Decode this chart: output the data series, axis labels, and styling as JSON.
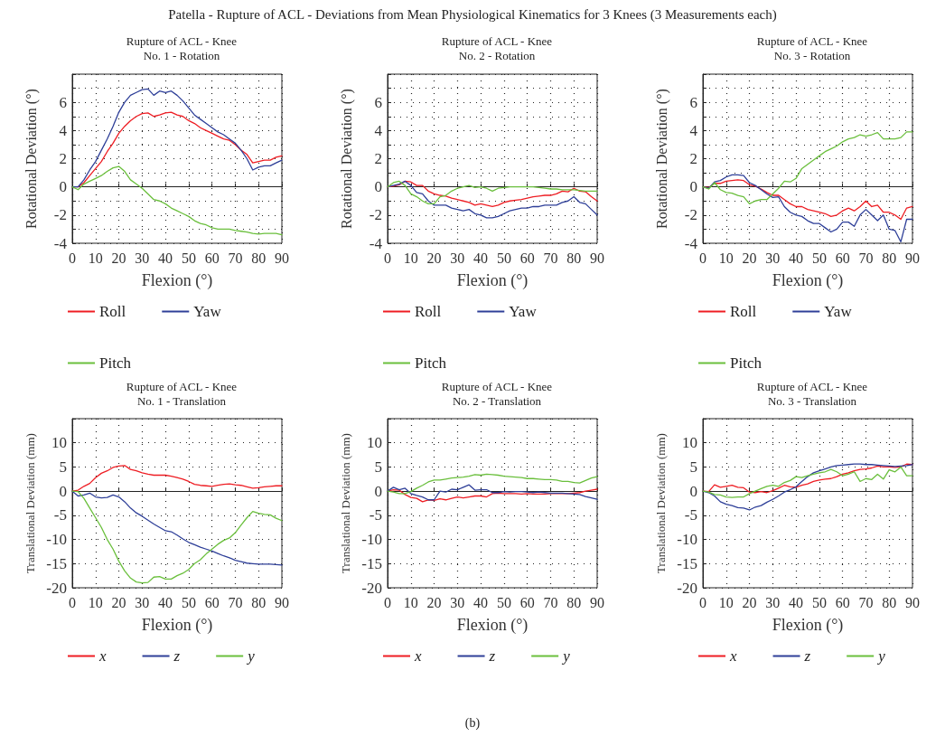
{
  "chart_data": [
    {
      "type": "line",
      "title": "Rupture of ACL - Knee\nNo. 1 - Rotation",
      "xlabel": "Flexion (°)",
      "ylabel": "Rotational Deviation (°)",
      "annotations": [
        "Patella - Rupture of ACL - Deviations from Mean Physiological Kinematics for 3 Knees (3 Measurements each)"
      ],
      "xlim": [
        0,
        90
      ],
      "xticks": [
        0,
        10,
        20,
        30,
        40,
        50,
        60,
        70,
        80,
        90
      ],
      "ylim": [
        -4,
        8
      ],
      "yticks": [
        -4,
        {
          "value": -3,
          "label": null
        },
        -2,
        {
          "value": -1,
          "label": null
        },
        0,
        {
          "value": 1,
          "label": null
        },
        2,
        {
          "value": 3,
          "label": null
        },
        4,
        {
          "value": 5,
          "label": null
        },
        6,
        {
          "value": 7,
          "label": null
        }
      ],
      "grid": true,
      "legend": "bottom",
      "x": [
        0,
        2.5,
        5,
        7.5,
        10,
        12.5,
        15,
        17.5,
        20,
        22.5,
        25,
        27.5,
        30,
        32.5,
        35,
        37.5,
        40,
        42.5,
        45,
        47.5,
        50,
        52.5,
        55,
        57.5,
        60,
        62.5,
        65,
        67.5,
        70,
        72.5,
        75,
        77.5,
        80,
        82.5,
        85,
        87.5,
        90
      ],
      "series": [
        {
          "name": "Roll",
          "color": "#ee1d23",
          "values": [
            0,
            0,
            0.3,
            0.8,
            1.3,
            1.8,
            2.5,
            3.1,
            3.8,
            4.3,
            4.7,
            5.0,
            5.2,
            5.25,
            5.0,
            5.1,
            5.25,
            5.3,
            5.1,
            5.0,
            4.7,
            4.5,
            4.2,
            4.0,
            3.8,
            3.6,
            3.4,
            3.3,
            3.0,
            2.6,
            2.3,
            1.7,
            1.8,
            1.9,
            1.9,
            2.1,
            2.2
          ]
        },
        {
          "name": "Yaw",
          "color": "#2e3f98",
          "values": [
            0,
            0,
            0.5,
            1.2,
            1.8,
            2.6,
            3.4,
            4.3,
            5.3,
            6.0,
            6.5,
            6.7,
            6.9,
            6.95,
            6.5,
            6.8,
            6.7,
            6.8,
            6.5,
            6.1,
            5.6,
            5.1,
            4.8,
            4.5,
            4.2,
            3.9,
            3.7,
            3.4,
            3.1,
            2.6,
            2.0,
            1.2,
            1.4,
            1.5,
            1.5,
            1.7,
            1.9
          ]
        },
        {
          "name": "Pitch",
          "color": "#6abf3c",
          "values": [
            0,
            -0.2,
            0.2,
            0.4,
            0.6,
            0.8,
            1.1,
            1.35,
            1.45,
            1.1,
            0.5,
            0.2,
            -0.1,
            -0.5,
            -0.9,
            -1.0,
            -1.2,
            -1.5,
            -1.7,
            -1.9,
            -2.1,
            -2.4,
            -2.6,
            -2.7,
            -2.9,
            -3.0,
            -3.0,
            -3.0,
            -3.1,
            -3.15,
            -3.2,
            -3.3,
            -3.35,
            -3.3,
            -3.3,
            -3.3,
            -3.4
          ]
        }
      ]
    },
    {
      "type": "line",
      "title": "Rupture of ACL - Knee\nNo. 2 - Rotation",
      "xlabel": "Flexion (°)",
      "ylabel": "Rotational Deviation (°)",
      "xlim": [
        0,
        90
      ],
      "xticks": [
        0,
        10,
        20,
        30,
        40,
        50,
        60,
        70,
        80,
        90
      ],
      "ylim": [
        -4,
        8
      ],
      "yticks": [
        -4,
        {
          "value": -3,
          "label": null
        },
        -2,
        {
          "value": -1,
          "label": null
        },
        0,
        {
          "value": 1,
          "label": null
        },
        2,
        {
          "value": 3,
          "label": null
        },
        4,
        {
          "value": 5,
          "label": null
        },
        6,
        {
          "value": 7,
          "label": null
        }
      ],
      "grid": true,
      "legend": "bottom",
      "x": [
        0,
        2.5,
        5,
        7.5,
        10,
        12.5,
        15,
        17.5,
        20,
        22.5,
        25,
        27.5,
        30,
        32.5,
        35,
        37.5,
        40,
        42.5,
        45,
        47.5,
        50,
        52.5,
        55,
        57.5,
        60,
        62.5,
        65,
        67.5,
        70,
        72.5,
        75,
        77.5,
        80,
        82.5,
        85,
        87.5,
        90
      ],
      "series": [
        {
          "name": "Roll",
          "color": "#ee1d23",
          "values": [
            0,
            0.05,
            0.15,
            0.4,
            0.35,
            0.1,
            0.1,
            -0.3,
            -0.5,
            -0.6,
            -0.65,
            -0.8,
            -0.9,
            -1.0,
            -1.1,
            -1.3,
            -1.2,
            -1.3,
            -1.4,
            -1.3,
            -1.1,
            -1.0,
            -0.95,
            -0.9,
            -0.8,
            -0.7,
            -0.65,
            -0.6,
            -0.6,
            -0.5,
            -0.3,
            -0.35,
            -0.1,
            -0.3,
            -0.35,
            -0.7,
            -1.0
          ]
        },
        {
          "name": "Yaw",
          "color": "#2e3f98",
          "values": [
            0,
            0.1,
            0.2,
            0.4,
            0.1,
            -0.4,
            -0.5,
            -1.0,
            -1.3,
            -1.3,
            -1.3,
            -1.5,
            -1.6,
            -1.7,
            -1.6,
            -1.9,
            -2.0,
            -2.2,
            -2.2,
            -2.1,
            -1.9,
            -1.7,
            -1.6,
            -1.5,
            -1.5,
            -1.4,
            -1.4,
            -1.3,
            -1.3,
            -1.3,
            -1.1,
            -1.0,
            -0.7,
            -1.1,
            -1.2,
            -1.6,
            -2.0
          ]
        },
        {
          "name": "Pitch",
          "color": "#6abf3c",
          "values": [
            0,
            0.3,
            0.4,
            0.1,
            -0.5,
            -0.7,
            -1.0,
            -1.2,
            -1.2,
            -0.7,
            -0.6,
            -0.3,
            -0.1,
            0.0,
            0.1,
            -0.05,
            0.0,
            -0.1,
            -0.3,
            -0.1,
            -0.05,
            0.0,
            0.0,
            0.0,
            0.0,
            0.0,
            -0.05,
            -0.1,
            -0.15,
            -0.15,
            -0.2,
            -0.2,
            -0.2,
            -0.25,
            -0.3,
            -0.3,
            -0.3
          ]
        }
      ]
    },
    {
      "type": "line",
      "title": "Rupture of ACL - Knee\nNo. 3 - Rotation",
      "xlabel": "Flexion (°)",
      "ylabel": "Rotational Deviation (°)",
      "xlim": [
        0,
        90
      ],
      "xticks": [
        0,
        10,
        20,
        30,
        40,
        50,
        60,
        70,
        80,
        90
      ],
      "ylim": [
        -4,
        8
      ],
      "yticks": [
        -4,
        {
          "value": -3,
          "label": null
        },
        -2,
        {
          "value": -1,
          "label": null
        },
        0,
        {
          "value": 1,
          "label": null
        },
        2,
        {
          "value": 3,
          "label": null
        },
        4,
        {
          "value": 5,
          "label": null
        },
        6,
        {
          "value": 7,
          "label": null
        }
      ],
      "grid": true,
      "legend": "bottom",
      "x": [
        0,
        2.5,
        5,
        7.5,
        10,
        12.5,
        15,
        17.5,
        20,
        22.5,
        25,
        27.5,
        30,
        32.5,
        35,
        37.5,
        40,
        42.5,
        45,
        47.5,
        50,
        52.5,
        55,
        57.5,
        60,
        62.5,
        65,
        67.5,
        70,
        72.5,
        75,
        77.5,
        80,
        82.5,
        85,
        87.5,
        90
      ],
      "series": [
        {
          "name": "Roll",
          "color": "#ee1d23",
          "values": [
            0,
            -0.05,
            0.25,
            0.25,
            0.4,
            0.45,
            0.5,
            0.45,
            0.15,
            0.05,
            -0.15,
            -0.4,
            -0.6,
            -0.6,
            -0.9,
            -1.2,
            -1.4,
            -1.4,
            -1.6,
            -1.7,
            -1.8,
            -1.9,
            -2.1,
            -2.0,
            -1.7,
            -1.5,
            -1.7,
            -1.4,
            -1.0,
            -1.4,
            -1.3,
            -1.8,
            -1.8,
            -2.0,
            -2.3,
            -1.5,
            -1.4
          ]
        },
        {
          "name": "Yaw",
          "color": "#2e3f98",
          "values": [
            0,
            -0.1,
            0.35,
            0.45,
            0.7,
            0.85,
            0.85,
            0.8,
            0.3,
            0.1,
            -0.2,
            -0.5,
            -0.75,
            -0.7,
            -1.4,
            -1.8,
            -2.0,
            -2.1,
            -2.4,
            -2.6,
            -2.6,
            -2.9,
            -3.2,
            -3.0,
            -2.5,
            -2.5,
            -2.8,
            -2.0,
            -1.6,
            -2.0,
            -2.4,
            -2.0,
            -3.0,
            -3.1,
            -3.9,
            -2.3,
            -2.3
          ]
        },
        {
          "name": "Pitch",
          "color": "#6abf3c",
          "values": [
            0,
            -0.15,
            0.3,
            -0.2,
            -0.4,
            -0.45,
            -0.6,
            -0.7,
            -1.2,
            -1.0,
            -0.9,
            -0.9,
            -0.5,
            -0.1,
            0.4,
            0.35,
            0.6,
            1.3,
            1.6,
            1.9,
            2.2,
            2.5,
            2.7,
            2.9,
            3.2,
            3.4,
            3.5,
            3.7,
            3.6,
            3.7,
            3.85,
            3.4,
            3.4,
            3.4,
            3.5,
            3.9,
            3.9
          ]
        }
      ]
    },
    {
      "type": "line",
      "title": "Rupture of ACL - Knee\nNo. 1 - Translation",
      "xlabel": "Flexion (°)",
      "ylabel": "Translational Deviation (mm)",
      "xlim": [
        0,
        90
      ],
      "xticks": [
        0,
        10,
        20,
        30,
        40,
        50,
        60,
        70,
        80,
        90
      ],
      "ylim": [
        -20,
        15
      ],
      "yticks": [
        -20,
        -15,
        -10,
        -5,
        0,
        5,
        10
      ],
      "grid": true,
      "legend": "bottom",
      "x": [
        0,
        2.5,
        5,
        7.5,
        10,
        12.5,
        15,
        17.5,
        20,
        22.5,
        25,
        27.5,
        30,
        32.5,
        35,
        37.5,
        40,
        42.5,
        45,
        47.5,
        50,
        52.5,
        55,
        57.5,
        60,
        62.5,
        65,
        67.5,
        70,
        72.5,
        75,
        77.5,
        80,
        82.5,
        85,
        87.5,
        90
      ],
      "series": [
        {
          "name": "x",
          "color": "#ee1d23",
          "values": [
            0,
            0.2,
            1.0,
            1.6,
            2.8,
            3.7,
            4.2,
            4.9,
            5.2,
            5.3,
            4.5,
            4.2,
            3.8,
            3.5,
            3.3,
            3.3,
            3.3,
            3.1,
            2.8,
            2.5,
            2.0,
            1.4,
            1.2,
            1.1,
            1.0,
            1.2,
            1.4,
            1.5,
            1.3,
            1.2,
            0.9,
            0.6,
            0.7,
            0.9,
            1.0,
            1.1,
            1.1
          ]
        },
        {
          "name": "z",
          "color": "#2e3f98",
          "values": [
            0,
            -1.0,
            -0.8,
            -0.4,
            -1.2,
            -1.4,
            -1.3,
            -0.8,
            -1.2,
            -2.2,
            -3.5,
            -4.5,
            -5.2,
            -6.0,
            -6.8,
            -7.5,
            -8.2,
            -8.4,
            -9.1,
            -9.9,
            -10.6,
            -11.1,
            -11.6,
            -12.0,
            -12.4,
            -12.9,
            -13.4,
            -13.8,
            -14.3,
            -14.6,
            -14.9,
            -15.0,
            -15.1,
            -15.1,
            -15.1,
            -15.2,
            -15.3
          ]
        },
        {
          "name": "y",
          "color": "#6abf3c",
          "values": [
            0,
            -0.1,
            -1.5,
            -3.5,
            -5.5,
            -7.5,
            -10.0,
            -12.0,
            -14.5,
            -16.5,
            -18.0,
            -18.8,
            -19.0,
            -18.9,
            -17.8,
            -17.7,
            -18.2,
            -18.2,
            -17.5,
            -17.0,
            -16.2,
            -15.0,
            -14.2,
            -13.0,
            -12.0,
            -11.0,
            -10.2,
            -9.7,
            -8.6,
            -7.0,
            -5.5,
            -4.2,
            -4.6,
            -4.8,
            -4.9,
            -5.6,
            -6.1
          ]
        }
      ]
    },
    {
      "type": "line",
      "title": "Rupture of ACL - Knee\nNo. 2 - Translation",
      "xlabel": "Flexion (°)",
      "ylabel": "Translational Deviation (mm)",
      "annotations": [
        "(b)"
      ],
      "xlim": [
        0,
        90
      ],
      "xticks": [
        0,
        10,
        20,
        30,
        40,
        50,
        60,
        70,
        80,
        90
      ],
      "ylim": [
        -20,
        15
      ],
      "yticks": [
        -20,
        -15,
        -10,
        -5,
        0,
        5,
        10
      ],
      "grid": true,
      "legend": "bottom",
      "x": [
        0,
        2.5,
        5,
        7.5,
        10,
        12.5,
        15,
        17.5,
        20,
        22.5,
        25,
        27.5,
        30,
        32.5,
        35,
        37.5,
        40,
        42.5,
        45,
        47.5,
        50,
        52.5,
        55,
        57.5,
        60,
        62.5,
        65,
        67.5,
        70,
        72.5,
        75,
        77.5,
        80,
        82.5,
        85,
        87.5,
        90
      ],
      "series": [
        {
          "name": "x",
          "color": "#ee1d23",
          "values": [
            0,
            0.3,
            0.2,
            -0.7,
            -1.3,
            -1.5,
            -2.2,
            -1.8,
            -1.9,
            -1.6,
            -1.8,
            -1.5,
            -1.2,
            -1.4,
            -1.2,
            -1.0,
            -1.0,
            -1.2,
            -0.5,
            -0.4,
            -0.5,
            -0.5,
            -0.5,
            -0.6,
            -0.5,
            -0.6,
            -0.6,
            -0.6,
            -0.5,
            -0.5,
            -0.5,
            -0.5,
            -0.4,
            -0.3,
            0.0,
            0.2,
            0.4
          ]
        },
        {
          "name": "z",
          "color": "#2e3f98",
          "values": [
            0,
            0.8,
            0.3,
            0.6,
            -0.5,
            -0.9,
            -1.2,
            -1.8,
            -1.8,
            0.0,
            -0.2,
            0.4,
            0.3,
            0.8,
            1.3,
            0.2,
            0.3,
            0.3,
            -0.3,
            -0.3,
            -0.1,
            -0.2,
            -0.1,
            -0.1,
            -0.2,
            -0.3,
            -0.2,
            -0.3,
            -0.4,
            -0.4,
            -0.4,
            -0.5,
            -0.6,
            -0.7,
            -1.1,
            -1.4,
            -1.7
          ]
        },
        {
          "name": "y",
          "color": "#6abf3c",
          "values": [
            0,
            -0.2,
            -0.5,
            -0.5,
            -0.1,
            0.6,
            1.2,
            1.9,
            2.3,
            2.3,
            2.5,
            2.7,
            2.8,
            2.9,
            3.1,
            3.4,
            3.3,
            3.5,
            3.4,
            3.3,
            3.1,
            3.0,
            2.9,
            2.8,
            2.6,
            2.6,
            2.5,
            2.4,
            2.4,
            2.3,
            2.0,
            2.0,
            1.8,
            1.7,
            2.2,
            2.7,
            3.0
          ]
        }
      ]
    },
    {
      "type": "line",
      "title": "Rupture of ACL - Knee\nNo. 3 - Translation",
      "xlabel": "Flexion (°)",
      "ylabel": "Translational Deviation (mm)",
      "xlim": [
        0,
        90
      ],
      "xticks": [
        0,
        10,
        20,
        30,
        40,
        50,
        60,
        70,
        80,
        90
      ],
      "ylim": [
        -20,
        15
      ],
      "yticks": [
        -20,
        -15,
        -10,
        -5,
        0,
        5,
        10
      ],
      "grid": true,
      "legend": "bottom",
      "x": [
        0,
        2.5,
        5,
        7.5,
        10,
        12.5,
        15,
        17.5,
        20,
        22.5,
        25,
        27.5,
        30,
        32.5,
        35,
        37.5,
        40,
        42.5,
        45,
        47.5,
        50,
        52.5,
        55,
        57.5,
        60,
        62.5,
        65,
        67.5,
        70,
        72.5,
        75,
        77.5,
        80,
        82.5,
        85,
        87.5,
        90
      ],
      "series": [
        {
          "name": "x",
          "color": "#ee1d23",
          "values": [
            0,
            -0.1,
            1.3,
            0.8,
            1.0,
            1.2,
            0.8,
            0.7,
            -0.2,
            -0.3,
            -0.1,
            -0.3,
            0.1,
            0.6,
            1.2,
            0.9,
            0.8,
            1.2,
            1.5,
            2.0,
            2.3,
            2.5,
            2.6,
            3.0,
            3.5,
            3.8,
            4.2,
            4.5,
            4.6,
            4.8,
            5.2,
            5.0,
            5.0,
            4.9,
            5.0,
            5.6,
            5.5
          ]
        },
        {
          "name": "z",
          "color": "#2e3f98",
          "values": [
            0,
            -0.3,
            -1.0,
            -2.2,
            -2.7,
            -3.0,
            -3.4,
            -3.5,
            -3.9,
            -3.3,
            -3.0,
            -2.3,
            -1.7,
            -1.0,
            -0.2,
            0.3,
            0.9,
            2.0,
            3.0,
            3.8,
            4.2,
            4.6,
            5.0,
            5.3,
            5.4,
            5.5,
            5.6,
            5.6,
            5.5,
            5.5,
            5.4,
            5.3,
            5.2,
            5.1,
            5.2,
            5.3,
            5.5
          ]
        },
        {
          "name": "y",
          "color": "#6abf3c",
          "values": [
            0,
            -0.2,
            -0.7,
            -0.8,
            -1.2,
            -1.3,
            -1.2,
            -1.2,
            -0.5,
            0.0,
            0.5,
            1.0,
            1.2,
            1.0,
            1.8,
            2.2,
            3.0,
            2.8,
            3.2,
            3.5,
            3.8,
            4.0,
            4.5,
            4.0,
            3.2,
            3.5,
            4.0,
            2.0,
            2.6,
            2.4,
            3.5,
            2.5,
            4.4,
            4.0,
            5.0,
            3.2,
            3.2
          ]
        }
      ]
    }
  ]
}
